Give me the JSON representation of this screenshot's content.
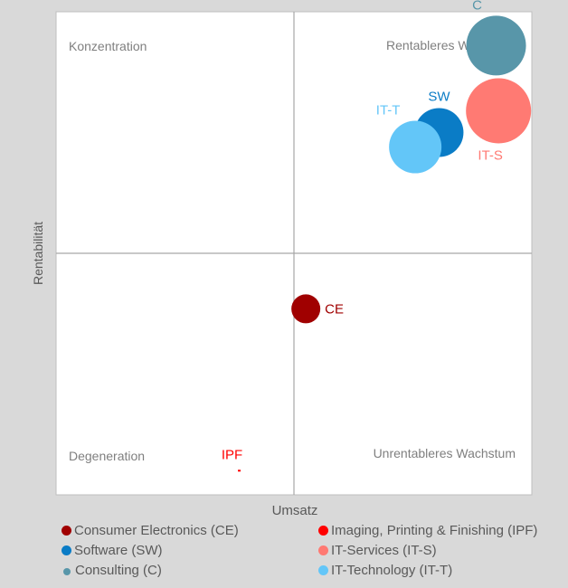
{
  "chart_data": {
    "type": "bubble",
    "title": "",
    "xlabel": "Umsatz",
    "ylabel": "Rentabilität",
    "xlim": [
      -1,
      1
    ],
    "ylim": [
      -1,
      1
    ],
    "grid": false,
    "quadrants": {
      "top_left": "Konzentration",
      "top_right": "Rentableres Wachstum",
      "bottom_left": "Degeneration",
      "bottom_right": "Unrentableres Wachstum"
    },
    "series": [
      {
        "name": "Consumer Electronics (CE)",
        "label": "CE",
        "color": "#a00000",
        "x": 0.05,
        "y": -0.23,
        "size": 16,
        "label_pos": "right"
      },
      {
        "name": "Imaging, Printing & Finishing (IPF)",
        "label": "IPF",
        "color": "#ff0000",
        "x": -0.23,
        "y": -0.9,
        "size": 1.5,
        "label_pos": "top"
      },
      {
        "name": "Software (SW)",
        "label": "SW",
        "color": "#0a7cc6",
        "x": 0.61,
        "y": 0.5,
        "size": 27,
        "label_pos": "top"
      },
      {
        "name": "IT-Services (IT-S)",
        "label": "IT-S",
        "color": "#ff7a73",
        "x": 0.86,
        "y": 0.59,
        "size": 36,
        "label_pos": "bottom"
      },
      {
        "name": "Consulting (C)",
        "label": "C",
        "color": "#5896a9",
        "x": 0.85,
        "y": 0.86,
        "size": 33,
        "label_pos": "top"
      },
      {
        "name": "IT-Technology (IT-T)",
        "label": "IT-T",
        "color": "#63c6f8",
        "x": 0.51,
        "y": 0.44,
        "size": 29,
        "label_pos": "top-left"
      }
    ],
    "legend": "bottom"
  }
}
